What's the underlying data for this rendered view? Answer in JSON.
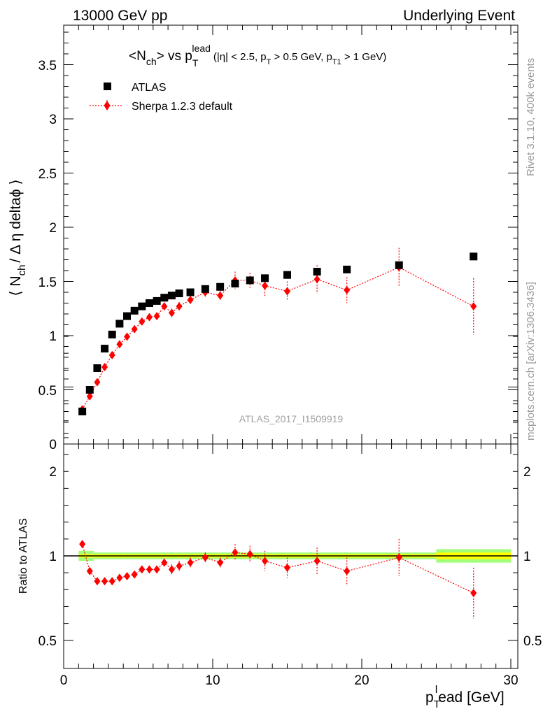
{
  "header": {
    "left": "13000 GeV pp",
    "right": "Underlying Event"
  },
  "title": {
    "main": "<N",
    "main_sub": "ch",
    "main_after": "> vs p",
    "main_pt_sub": "T",
    "main_pt_sup": "lead",
    "cuts_a": "(|η| < 2.5, p",
    "cuts_a_sub": "T",
    "cuts_b": " > 0.5 GeV, p",
    "cuts_b_sub": "T1",
    "cuts_c": " > 1 GeV)"
  },
  "side": {
    "rivet": "Rivet 3.1.10,  400k events",
    "mcplots": "mcplots.cern.ch [arXiv:1306.3436]"
  },
  "watermark": "ATLAS_2017_I1509919",
  "y_label": {
    "a": "⟨ N",
    "sub": "ch",
    "b": "/ Δ η deltaϕ ⟩"
  },
  "ratio_label": "Ratio to ATLAS",
  "x_label": {
    "p": "p",
    "sub": "T",
    "sup": "l",
    "rest": "ead [GeV]"
  },
  "colors": {
    "data": "#000000",
    "mc": "#ff0000",
    "band_inner": "#ffff00",
    "band_outer": "#a3ff7a"
  },
  "chart_data": [
    {
      "type": "scatter",
      "panel": "main",
      "xlim": [
        0,
        30
      ],
      "ylim": [
        0,
        3.9
      ],
      "x_ticks": [
        "0",
        "10",
        "20",
        "30"
      ],
      "y_ticks": [
        "0",
        "0.5",
        "1",
        "1.5",
        "2",
        "2.5",
        "3",
        "3.5"
      ],
      "legend": {
        "position": "top-left",
        "entries": [
          "ATLAS",
          "Sherpa 1.2.3 default"
        ]
      },
      "series": [
        {
          "name": "ATLAS",
          "marker": "square",
          "x": [
            1.25,
            1.75,
            2.25,
            2.75,
            3.25,
            3.75,
            4.25,
            4.75,
            5.25,
            5.75,
            6.25,
            6.75,
            7.25,
            7.75,
            8.5,
            9.5,
            10.5,
            11.5,
            12.5,
            13.5,
            15.0,
            17.0,
            19.0,
            22.5,
            27.5
          ],
          "y": [
            0.3,
            0.5,
            0.7,
            0.88,
            1.01,
            1.11,
            1.18,
            1.23,
            1.27,
            1.3,
            1.32,
            1.35,
            1.37,
            1.39,
            1.4,
            1.43,
            1.45,
            1.48,
            1.51,
            1.53,
            1.56,
            1.59,
            1.61,
            1.65,
            1.73
          ]
        },
        {
          "name": "Sherpa 1.2.3 default",
          "marker": "diamond",
          "x": [
            1.25,
            1.75,
            2.25,
            2.75,
            3.25,
            3.75,
            4.25,
            4.75,
            5.25,
            5.75,
            6.25,
            6.75,
            7.25,
            7.75,
            8.5,
            9.5,
            10.5,
            11.5,
            12.5,
            13.5,
            15.0,
            17.0,
            19.0,
            22.5,
            27.5
          ],
          "y": [
            0.32,
            0.44,
            0.57,
            0.71,
            0.82,
            0.92,
            0.99,
            1.06,
            1.13,
            1.17,
            1.18,
            1.27,
            1.21,
            1.27,
            1.33,
            1.4,
            1.37,
            1.51,
            1.51,
            1.46,
            1.41,
            1.52,
            1.42,
            1.63,
            1.27
          ],
          "yerr": [
            0.01,
            0.01,
            0.01,
            0.01,
            0.01,
            0.02,
            0.02,
            0.02,
            0.02,
            0.02,
            0.03,
            0.03,
            0.04,
            0.04,
            0.04,
            0.05,
            0.05,
            0.08,
            0.07,
            0.1,
            0.09,
            0.13,
            0.12,
            0.18,
            0.26
          ]
        }
      ]
    },
    {
      "type": "scatter",
      "panel": "ratio",
      "xlim": [
        0,
        30
      ],
      "ylim": [
        0.35,
        2.35
      ],
      "x_ticks": [
        "0",
        "10",
        "20",
        "30"
      ],
      "y_ticks": [
        "0.5",
        "1",
        "2"
      ],
      "reference_line": 1,
      "series": [
        {
          "name": "Sherpa 1.2.3 default",
          "x": [
            1.25,
            1.75,
            2.25,
            2.75,
            3.25,
            3.75,
            4.25,
            4.75,
            5.25,
            5.75,
            6.25,
            6.75,
            7.25,
            7.75,
            8.5,
            9.5,
            10.5,
            11.5,
            12.5,
            13.5,
            15.0,
            17.0,
            19.0,
            22.5,
            27.5
          ],
          "y": [
            1.07,
            0.91,
            0.85,
            0.85,
            0.85,
            0.87,
            0.88,
            0.89,
            0.92,
            0.92,
            0.92,
            0.96,
            0.92,
            0.94,
            0.96,
            0.99,
            0.96,
            1.02,
            1.01,
            0.97,
            0.93,
            0.97,
            0.91,
            0.99,
            0.78
          ],
          "yerr": [
            0.02,
            0.02,
            0.01,
            0.01,
            0.01,
            0.02,
            0.02,
            0.02,
            0.02,
            0.02,
            0.02,
            0.02,
            0.03,
            0.03,
            0.03,
            0.03,
            0.03,
            0.05,
            0.05,
            0.06,
            0.06,
            0.08,
            0.08,
            0.11,
            0.15
          ]
        }
      ],
      "band": {
        "x": [
          1.0,
          1.5,
          2.0,
          2.5,
          3.0,
          3.5,
          4.0,
          4.5,
          5.0,
          5.5,
          6.0,
          6.5,
          7.0,
          7.5,
          8.0,
          9.0,
          10.0,
          11.0,
          12.0,
          13.0,
          14.0,
          16.0,
          18.0,
          20.0,
          25.0,
          30.0
        ],
        "inner": [
          0.01,
          0.01,
          0.01,
          0.01,
          0.01,
          0.01,
          0.01,
          0.01,
          0.01,
          0.01,
          0.01,
          0.01,
          0.01,
          0.01,
          0.01,
          0.01,
          0.01,
          0.01,
          0.01,
          0.01,
          0.01,
          0.01,
          0.01,
          0.01,
          0.02,
          0.02
        ],
        "outer": [
          0.03,
          0.03,
          0.02,
          0.02,
          0.02,
          0.02,
          0.02,
          0.02,
          0.02,
          0.02,
          0.02,
          0.02,
          0.02,
          0.02,
          0.02,
          0.02,
          0.02,
          0.02,
          0.02,
          0.02,
          0.02,
          0.02,
          0.02,
          0.02,
          0.04,
          0.04
        ]
      }
    }
  ]
}
